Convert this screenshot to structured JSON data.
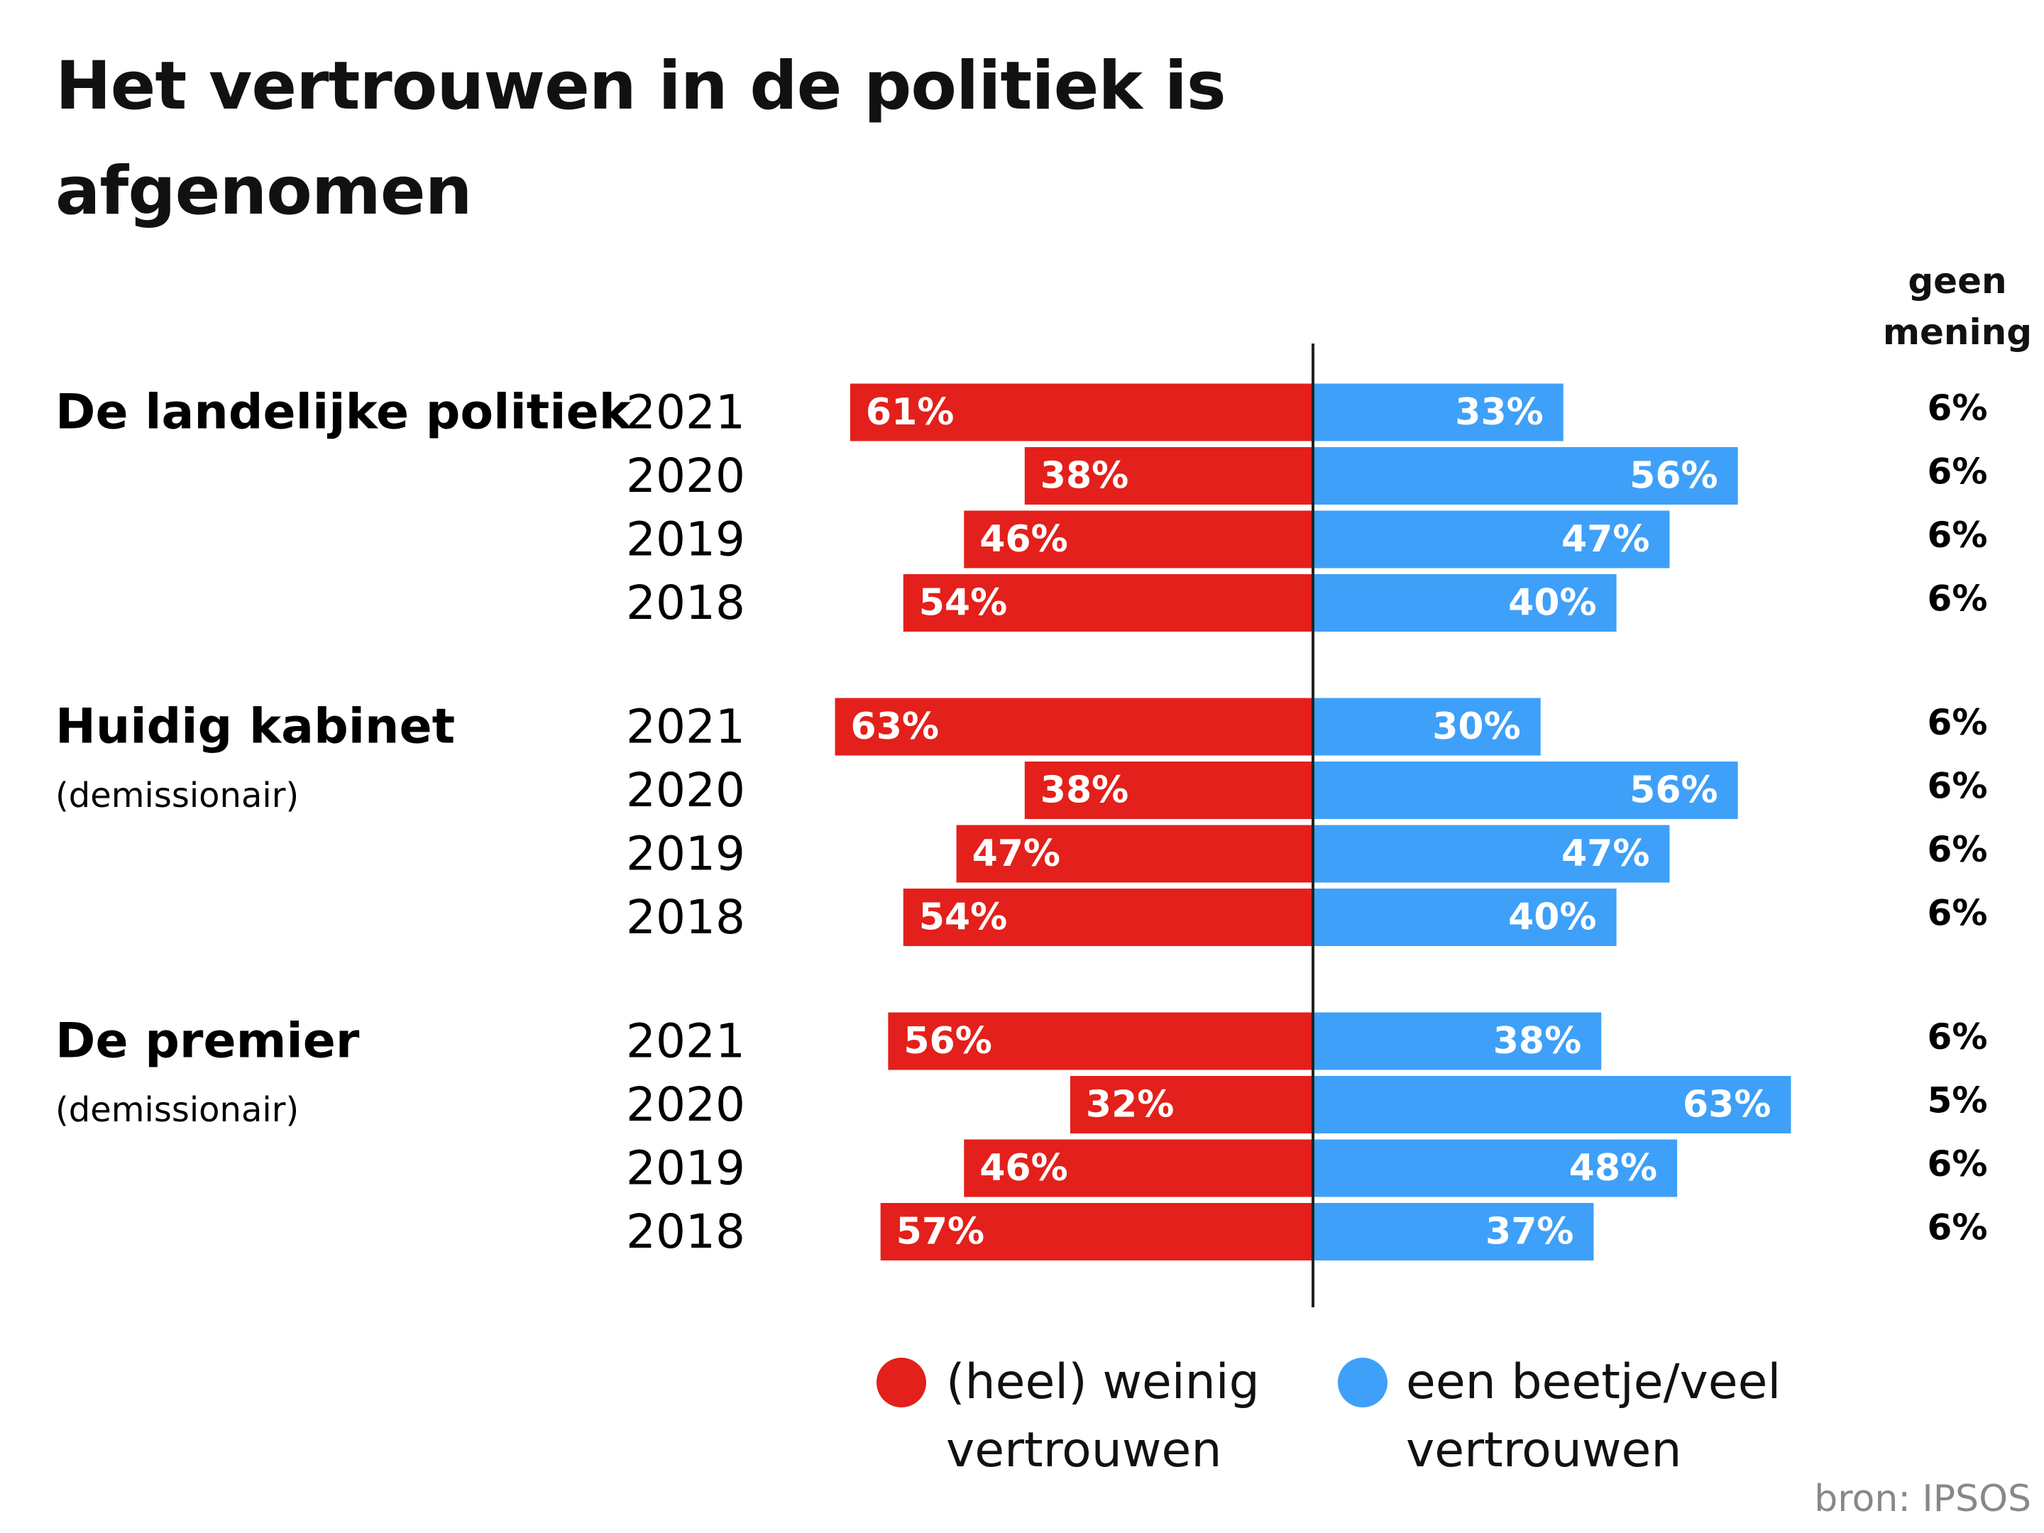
{
  "chart_data": {
    "type": "diverging_bar",
    "title": "Het vertrouwen in de politiek is afgenomen",
    "groups": [
      {
        "name": "De landelijke politiek",
        "categories": [
          "2021",
          "2020",
          "2019",
          "2018"
        ],
        "series": [
          {
            "name": "(heel) weinig vertrouwen",
            "color": "#e3201b",
            "values": [
              61,
              38,
              46,
              54
            ],
            "value_labels": [
              "61%",
              "38%",
              "46%",
              "54%"
            ]
          },
          {
            "name": "een beetje/veel vertrouwen",
            "color": "#3ea0f8",
            "values": [
              33,
              56,
              47,
              40
            ],
            "value_labels": [
              "33%",
              "56%",
              "47%",
              "40%"
            ]
          },
          {
            "name": "geen mening",
            "values": [
              6,
              6,
              6,
              6
            ],
            "value_labels": [
              "6%",
              "6%",
              "6%",
              "6%"
            ]
          }
        ]
      },
      {
        "name": "Huidig kabinet",
        "subtitle": "(demissionair)",
        "categories": [
          "2021",
          "2020",
          "2019",
          "2018"
        ],
        "series": [
          {
            "name": "(heel) weinig vertrouwen",
            "color": "#e3201b",
            "values": [
              63,
              38,
              47,
              54
            ],
            "value_labels": [
              "63%",
              "38%",
              "47%",
              "54%"
            ]
          },
          {
            "name": "een beetje/veel vertrouwen",
            "color": "#3ea0f8",
            "values": [
              30,
              56,
              47,
              40
            ],
            "value_labels": [
              "30%",
              "56%",
              "47%",
              "40%"
            ]
          },
          {
            "name": "geen mening",
            "values": [
              6,
              6,
              6,
              6
            ],
            "value_labels": [
              "6%",
              "6%",
              "6%",
              "6%"
            ]
          }
        ]
      },
      {
        "name": "De premier",
        "subtitle": "(demissionair)",
        "categories": [
          "2021",
          "2020",
          "2019",
          "2018"
        ],
        "series": [
          {
            "name": "(heel) weinig vertrouwen",
            "color": "#e3201b",
            "values": [
              56,
              32,
              46,
              57
            ],
            "value_labels": [
              "56%",
              "32%",
              "46%",
              "57%"
            ]
          },
          {
            "name": "een beetje/veel vertrouwen",
            "color": "#3ea0f8",
            "values": [
              38,
              63,
              48,
              37
            ],
            "value_labels": [
              "38%",
              "63%",
              "48%",
              "37%"
            ]
          },
          {
            "name": "geen mening",
            "values": [
              6,
              5,
              6,
              6
            ],
            "value_labels": [
              "6%",
              "5%",
              "6%",
              "6%"
            ]
          }
        ]
      }
    ],
    "source": "bron: IPSOS"
  }
}
